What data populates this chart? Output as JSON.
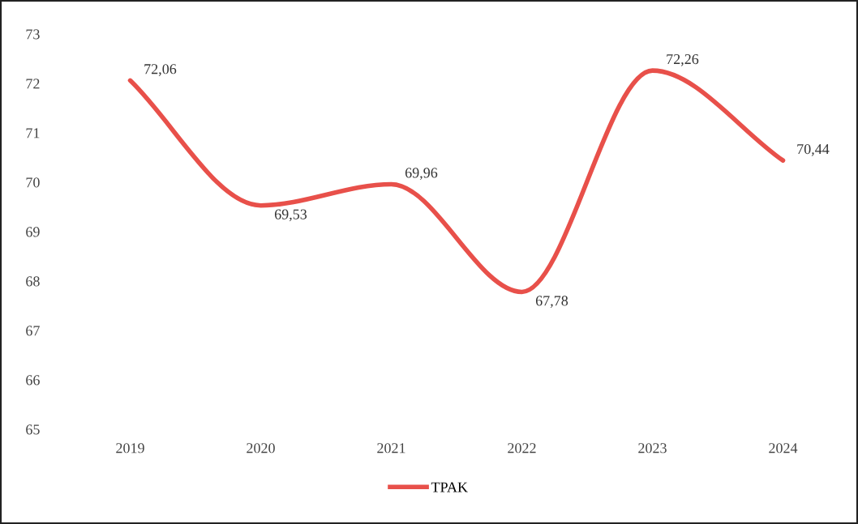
{
  "chart_data": {
    "type": "line",
    "categories": [
      "2019",
      "2020",
      "2021",
      "2022",
      "2023",
      "2024"
    ],
    "series": [
      {
        "name": "TPAK",
        "color": "#e8504a",
        "values": [
          72.06,
          69.53,
          69.96,
          67.78,
          72.26,
          70.44
        ],
        "value_labels": [
          "72,06",
          "69,53",
          "69,96",
          "67,78",
          "72,26",
          "70,44"
        ]
      }
    ],
    "ylim": [
      65,
      73
    ],
    "yticks": [
      65,
      66,
      67,
      68,
      69,
      70,
      71,
      72,
      73
    ],
    "legend": "bottom",
    "marker": "none",
    "line_style": "solid",
    "grid": false
  }
}
